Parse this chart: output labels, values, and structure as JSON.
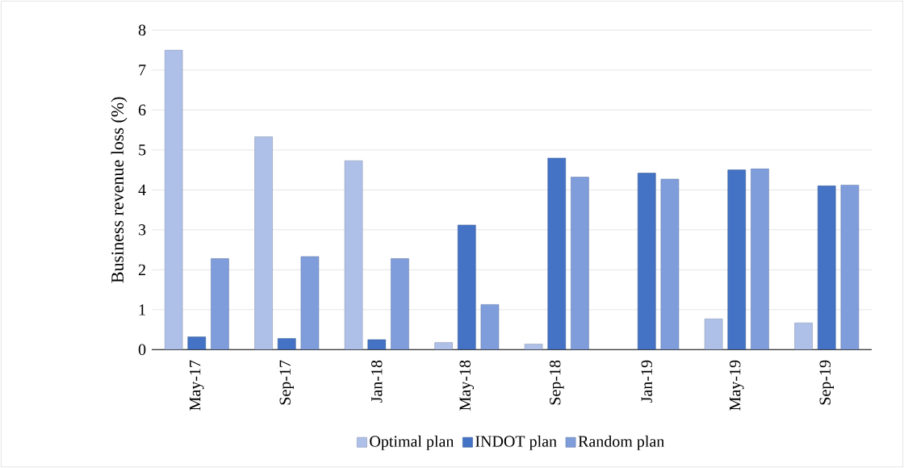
{
  "chart_data": {
    "type": "bar",
    "ylabel": "Business revenue loss (%)",
    "categories": [
      "May-17",
      "Sep-17",
      "Jan-18",
      "May-18",
      "Sep-18",
      "Jan-19",
      "May-19",
      "Sep-19"
    ],
    "series": [
      {
        "name": "Optimal plan",
        "color": "#aec0e8",
        "values": [
          7.5,
          5.33,
          4.73,
          0.18,
          0.14,
          0,
          0.77,
          0.67
        ]
      },
      {
        "name": "INDOT plan",
        "color": "#4472c4",
        "values": [
          0.32,
          0.28,
          0.25,
          3.12,
          4.8,
          4.42,
          4.5,
          4.1
        ]
      },
      {
        "name": "Random plan",
        "color": "#7f9ddb",
        "values": [
          2.28,
          2.33,
          2.28,
          1.13,
          4.32,
          4.27,
          4.53,
          4.12
        ]
      }
    ],
    "ylim": [
      0,
      8
    ],
    "yticks": [
      0,
      1,
      2,
      3,
      4,
      5,
      6,
      7,
      8
    ],
    "grid": "y",
    "legend": "bottom"
  }
}
